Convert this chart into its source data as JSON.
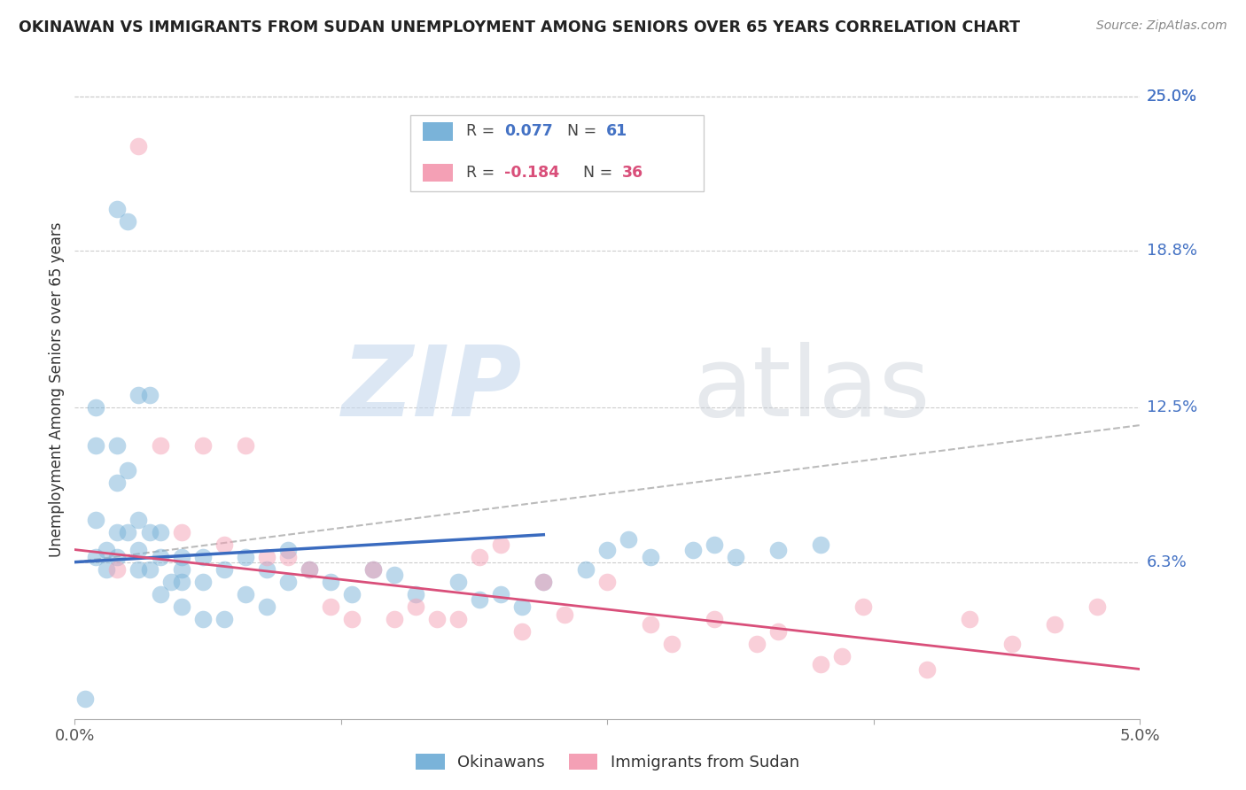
{
  "title": "OKINAWAN VS IMMIGRANTS FROM SUDAN UNEMPLOYMENT AMONG SENIORS OVER 65 YEARS CORRELATION CHART",
  "source": "Source: ZipAtlas.com",
  "ylabel": "Unemployment Among Seniors over 65 years",
  "right_yticks": [
    "25.0%",
    "18.8%",
    "12.5%",
    "6.3%"
  ],
  "right_ytick_vals": [
    0.25,
    0.188,
    0.125,
    0.063
  ],
  "xlim": [
    0.0,
    0.05
  ],
  "ylim": [
    0.0,
    0.265
  ],
  "watermark_zip": "ZIP",
  "watermark_atlas": "atlas",
  "color_blue": "#7ab3d9",
  "color_pink": "#f4a0b5",
  "line_blue": "#3a6bbf",
  "line_pink": "#d94f7a",
  "line_dashed": "#bbbbbb",
  "okinawan_x": [
    0.0005,
    0.002,
    0.0025,
    0.003,
    0.0035,
    0.001,
    0.001,
    0.001,
    0.001,
    0.0015,
    0.0015,
    0.002,
    0.002,
    0.002,
    0.002,
    0.0025,
    0.0025,
    0.003,
    0.003,
    0.003,
    0.0035,
    0.0035,
    0.004,
    0.004,
    0.004,
    0.0045,
    0.005,
    0.005,
    0.005,
    0.005,
    0.006,
    0.006,
    0.006,
    0.007,
    0.007,
    0.008,
    0.008,
    0.009,
    0.009,
    0.01,
    0.01,
    0.011,
    0.012,
    0.013,
    0.014,
    0.015,
    0.016,
    0.018,
    0.019,
    0.02,
    0.021,
    0.022,
    0.024,
    0.025,
    0.026,
    0.027,
    0.029,
    0.03,
    0.031,
    0.033,
    0.035
  ],
  "okinawan_y": [
    0.008,
    0.205,
    0.2,
    0.13,
    0.13,
    0.125,
    0.11,
    0.08,
    0.065,
    0.068,
    0.06,
    0.11,
    0.095,
    0.075,
    0.065,
    0.1,
    0.075,
    0.08,
    0.068,
    0.06,
    0.075,
    0.06,
    0.075,
    0.065,
    0.05,
    0.055,
    0.065,
    0.06,
    0.055,
    0.045,
    0.065,
    0.055,
    0.04,
    0.06,
    0.04,
    0.065,
    0.05,
    0.06,
    0.045,
    0.068,
    0.055,
    0.06,
    0.055,
    0.05,
    0.06,
    0.058,
    0.05,
    0.055,
    0.048,
    0.05,
    0.045,
    0.055,
    0.06,
    0.068,
    0.072,
    0.065,
    0.068,
    0.07,
    0.065,
    0.068,
    0.07
  ],
  "sudan_x": [
    0.003,
    0.004,
    0.005,
    0.006,
    0.007,
    0.008,
    0.009,
    0.01,
    0.011,
    0.012,
    0.013,
    0.014,
    0.015,
    0.016,
    0.017,
    0.018,
    0.019,
    0.02,
    0.021,
    0.022,
    0.023,
    0.025,
    0.027,
    0.028,
    0.03,
    0.032,
    0.033,
    0.035,
    0.036,
    0.037,
    0.04,
    0.042,
    0.044,
    0.046,
    0.048,
    0.002
  ],
  "sudan_y": [
    0.23,
    0.11,
    0.075,
    0.11,
    0.07,
    0.11,
    0.065,
    0.065,
    0.06,
    0.045,
    0.04,
    0.06,
    0.04,
    0.045,
    0.04,
    0.04,
    0.065,
    0.07,
    0.035,
    0.055,
    0.042,
    0.055,
    0.038,
    0.03,
    0.04,
    0.03,
    0.035,
    0.022,
    0.025,
    0.045,
    0.02,
    0.04,
    0.03,
    0.038,
    0.045,
    0.06
  ],
  "blue_trend_x0": 0.0,
  "blue_trend_x1": 0.022,
  "blue_trend_y0": 0.063,
  "blue_trend_y1": 0.074,
  "dashed_trend_x0": 0.0,
  "dashed_trend_x1": 0.05,
  "dashed_trend_y0": 0.063,
  "dashed_trend_y1": 0.118,
  "pink_trend_x0": 0.0,
  "pink_trend_x1": 0.05,
  "pink_trend_y0": 0.068,
  "pink_trend_y1": 0.02
}
